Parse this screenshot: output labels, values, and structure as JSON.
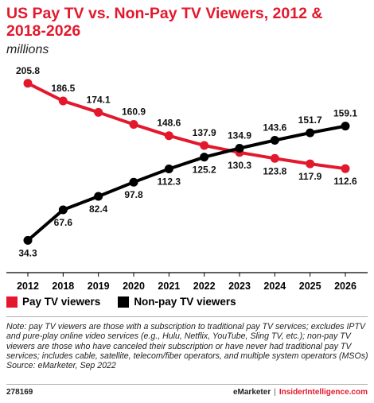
{
  "title": "US Pay TV vs. Non-Pay TV Viewers, 2012 & 2018-2026",
  "subtitle": "millions",
  "chart_data": {
    "type": "line",
    "categories": [
      "2012",
      "2018",
      "2019",
      "2020",
      "2021",
      "2022",
      "2023",
      "2024",
      "2025",
      "2026"
    ],
    "series": [
      {
        "name": "Pay TV viewers",
        "color": "#e3182d",
        "values": [
          205.8,
          186.5,
          174.1,
          160.9,
          148.6,
          137.9,
          130.3,
          123.8,
          117.9,
          112.6
        ],
        "labels": [
          "205.8",
          "186.5",
          "174.1",
          "160.9",
          "148.6",
          "137.9",
          "130.3",
          "123.8",
          "117.9",
          "112.6"
        ]
      },
      {
        "name": "Non-pay TV viewers",
        "color": "#000000",
        "values": [
          34.3,
          67.6,
          82.4,
          97.8,
          112.3,
          125.2,
          134.9,
          143.6,
          151.7,
          159.1
        ],
        "labels": [
          "34.3",
          "67.6",
          "82.4",
          "97.8",
          "112.3",
          "125.2",
          "134.9",
          "143.6",
          "151.7",
          "159.1"
        ]
      }
    ],
    "grid": false,
    "legend_position": "bottom-left"
  },
  "note": "Note: pay TV viewers are those with a subscription to traditional pay TV services; excludes IPTV and pure-play online video services (e.g., Hulu, Netflix, YouTube, Sling TV, etc.); non-pay TV viewers are those who have canceled their subscription or have never had traditional pay TV services; includes cable, satellite, telecom/fiber operators, and multiple system operators (MSOs)",
  "source": "Source: eMarketer, Sep 2022",
  "footer": {
    "chart_id": "278169",
    "brand1": "eMarketer",
    "separator": "|",
    "brand2": "InsiderIntelligence.com"
  }
}
